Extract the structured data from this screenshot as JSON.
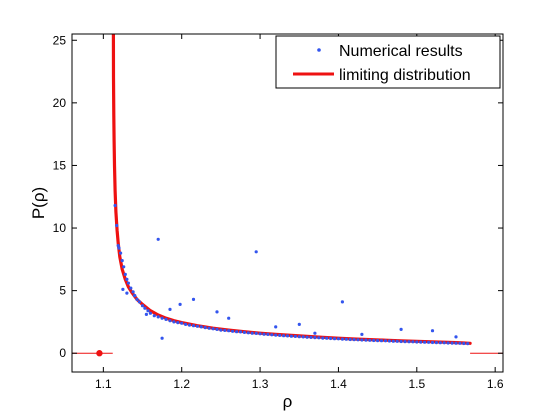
{
  "chart_data": {
    "type": "scatter",
    "xlabel": "ρ",
    "ylabel": "P(ρ)",
    "xlim": [
      1.06,
      1.61
    ],
    "ylim": [
      -1.5,
      25.5
    ],
    "x_ticks": [
      1.1,
      1.2,
      1.3,
      1.4,
      1.5,
      1.6
    ],
    "x_tick_labels": [
      "1.1",
      "1.2",
      "1.3",
      "1.4",
      "1.5",
      "1.6"
    ],
    "y_ticks": [
      0,
      5,
      10,
      15,
      20,
      25
    ],
    "y_tick_labels": [
      "0",
      "5",
      "10",
      "15",
      "20",
      "25"
    ],
    "grid": false,
    "legend_position": "top-right",
    "series": [
      {
        "name": "Numerical results",
        "style": "dots",
        "color": "#3355ee",
        "x": [
          1.115,
          1.117,
          1.119,
          1.12,
          1.122,
          1.124,
          1.126,
          1.128,
          1.13,
          1.132,
          1.135,
          1.138,
          1.14,
          1.143,
          1.146,
          1.15,
          1.153,
          1.157,
          1.16,
          1.165,
          1.17,
          1.175,
          1.18,
          1.185,
          1.19,
          1.195,
          1.2,
          1.205,
          1.21,
          1.215,
          1.22,
          1.225,
          1.23,
          1.235,
          1.24,
          1.245,
          1.25,
          1.255,
          1.26,
          1.265,
          1.27,
          1.275,
          1.28,
          1.285,
          1.29,
          1.295,
          1.3,
          1.305,
          1.31,
          1.315,
          1.32,
          1.325,
          1.33,
          1.335,
          1.34,
          1.345,
          1.35,
          1.355,
          1.36,
          1.365,
          1.37,
          1.375,
          1.38,
          1.385,
          1.39,
          1.395,
          1.4,
          1.405,
          1.41,
          1.415,
          1.42,
          1.425,
          1.43,
          1.435,
          1.44,
          1.445,
          1.45,
          1.455,
          1.46,
          1.465,
          1.47,
          1.475,
          1.48,
          1.485,
          1.49,
          1.495,
          1.5,
          1.505,
          1.51,
          1.515,
          1.52,
          1.525,
          1.53,
          1.535,
          1.54,
          1.545,
          1.55,
          1.555,
          1.56,
          1.565,
          1.17,
          1.295,
          1.405,
          1.215,
          1.185,
          1.245,
          1.35,
          1.48,
          1.52,
          1.125,
          1.13,
          1.14,
          1.155,
          1.175,
          1.198,
          1.26,
          1.32,
          1.37,
          1.43,
          1.55
        ],
        "y": [
          11.8,
          10.2,
          8.6,
          8.4,
          8.0,
          7.4,
          6.9,
          6.3,
          5.9,
          5.6,
          5.2,
          4.9,
          4.6,
          4.3,
          4.1,
          3.8,
          3.6,
          3.4,
          3.2,
          3.0,
          2.9,
          2.8,
          2.7,
          2.6,
          2.5,
          2.45,
          2.4,
          2.3,
          2.25,
          2.2,
          2.15,
          2.1,
          2.05,
          2.0,
          1.95,
          1.9,
          1.85,
          1.82,
          1.8,
          1.75,
          1.72,
          1.7,
          1.66,
          1.63,
          1.6,
          1.58,
          1.55,
          1.52,
          1.5,
          1.47,
          1.45,
          1.42,
          1.4,
          1.38,
          1.36,
          1.34,
          1.32,
          1.3,
          1.28,
          1.26,
          1.25,
          1.23,
          1.21,
          1.2,
          1.18,
          1.16,
          1.15,
          1.13,
          1.12,
          1.1,
          1.09,
          1.07,
          1.06,
          1.05,
          1.03,
          1.02,
          1.01,
          1.0,
          0.99,
          0.98,
          0.96,
          0.95,
          0.94,
          0.93,
          0.92,
          0.91,
          0.9,
          0.89,
          0.88,
          0.87,
          0.86,
          0.85,
          0.84,
          0.83,
          0.82,
          0.81,
          0.8,
          0.79,
          0.78,
          0.77,
          9.1,
          8.1,
          4.1,
          4.3,
          3.5,
          3.3,
          2.3,
          1.9,
          1.8,
          5.1,
          4.8,
          4.6,
          3.1,
          1.2,
          3.9,
          2.8,
          2.1,
          1.6,
          1.5,
          1.3
        ]
      },
      {
        "name": "limiting distribution",
        "style": "line",
        "color": "#ee1111",
        "x": [
          1.1128,
          1.113,
          1.1133,
          1.1137,
          1.1142,
          1.115,
          1.116,
          1.1175,
          1.119,
          1.121,
          1.124,
          1.128,
          1.132,
          1.137,
          1.143,
          1.15,
          1.16,
          1.17,
          1.18,
          1.19,
          1.2,
          1.22,
          1.24,
          1.26,
          1.28,
          1.3,
          1.32,
          1.34,
          1.36,
          1.38,
          1.4,
          1.42,
          1.44,
          1.46,
          1.48,
          1.5,
          1.52,
          1.54,
          1.55,
          1.56,
          1.565,
          1.568
        ],
        "y": [
          25.5,
          22.0,
          19.0,
          17.0,
          15.0,
          13.0,
          11.3,
          9.8,
          8.8,
          7.7,
          6.7,
          5.9,
          5.3,
          4.8,
          4.3,
          3.9,
          3.4,
          3.05,
          2.8,
          2.6,
          2.45,
          2.2,
          2.0,
          1.85,
          1.72,
          1.6,
          1.5,
          1.42,
          1.34,
          1.27,
          1.2,
          1.14,
          1.09,
          1.04,
          0.99,
          0.95,
          0.91,
          0.87,
          0.85,
          0.82,
          0.8,
          0.79
        ]
      }
    ],
    "extra_marks": {
      "zero_line_left": {
        "x": [
          1.06,
          1.112
        ],
        "y": [
          0,
          0
        ],
        "color": "#ee1111"
      },
      "zero_line_right": {
        "x": [
          1.568,
          1.61
        ],
        "y": [
          0,
          0
        ],
        "color": "#ee1111"
      },
      "marker_point": {
        "x": 1.095,
        "y": 0,
        "color": "#ee1111"
      }
    }
  }
}
